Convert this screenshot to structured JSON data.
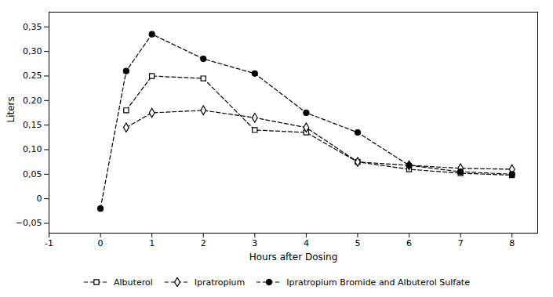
{
  "chart_data": {
    "type": "line",
    "x": [
      0,
      0.5,
      1,
      2,
      3,
      4,
      5,
      6,
      7,
      8
    ],
    "series": [
      {
        "name": "Albuterol",
        "color": "#000000",
        "marker": "square-open",
        "line_style": "dashed",
        "values": [
          null,
          0.18,
          0.25,
          0.245,
          0.14,
          0.135,
          0.075,
          0.06,
          0.052,
          0.048
        ]
      },
      {
        "name": "Ipratropium",
        "color": "#000000",
        "marker": "diamond-open",
        "line_style": "dashed",
        "values": [
          null,
          0.145,
          0.175,
          0.18,
          0.165,
          0.145,
          0.075,
          0.068,
          0.062,
          0.06
        ]
      },
      {
        "name": "Ipratropium Bromide and Albuterol Sulfate",
        "color": "#000000",
        "marker": "circle",
        "line_style": "dashed",
        "values": [
          -0.02,
          0.26,
          0.335,
          0.285,
          0.255,
          0.175,
          0.135,
          0.068,
          0.055,
          0.05
        ]
      }
    ],
    "xlabel": "Hours after Dosing",
    "ylabel": "Liters",
    "xlim": [
      -1,
      8.5
    ],
    "ylim": [
      -0.07,
      0.38
    ],
    "xticks": [
      -1,
      0,
      1,
      2,
      3,
      4,
      5,
      6,
      7,
      8
    ],
    "yticks": [
      {
        "value": -0.05,
        "label": "−0,05"
      },
      0,
      {
        "value": 0.05,
        "label": "0,05"
      },
      {
        "value": 0.1,
        "label": "0,10"
      },
      {
        "value": 0.15,
        "label": "0,15"
      },
      {
        "value": 0.2,
        "label": "0,20"
      },
      {
        "value": 0.25,
        "label": "0,25"
      },
      {
        "value": 0.3,
        "label": "0,30"
      },
      {
        "value": 0.35,
        "label": "0,35"
      }
    ],
    "grid": false,
    "legend": "bottom"
  }
}
